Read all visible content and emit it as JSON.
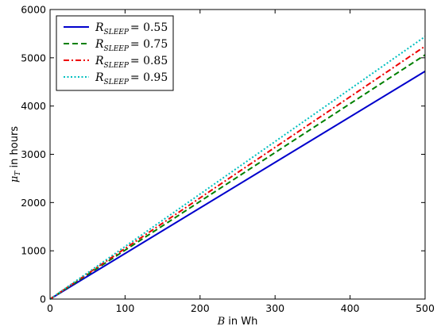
{
  "chart_data": {
    "type": "line",
    "title": "",
    "xlabel": {
      "symbol": "B",
      "rest": " in Wh"
    },
    "ylabel": {
      "symbol": "μ",
      "sub": "T",
      "rest": " in hours"
    },
    "xlim": [
      0,
      500
    ],
    "ylim": [
      0,
      6000
    ],
    "xticks": [
      0,
      100,
      200,
      300,
      400,
      500
    ],
    "yticks": [
      0,
      1000,
      2000,
      3000,
      4000,
      5000,
      6000
    ],
    "grid": false,
    "legend_position": "top-left",
    "series": [
      {
        "name": "R_SLEEP = 0.55",
        "sym": "R",
        "sub": "SLEEP",
        "val": "= 0.55",
        "color": "#0000cc",
        "dash": "solid",
        "x": [
          0,
          500
        ],
        "y": [
          0,
          4720
        ]
      },
      {
        "name": "R_SLEEP = 0.75",
        "sym": "R",
        "sub": "SLEEP",
        "val": "= 0.75",
        "color": "#008000",
        "dash": "dashed",
        "x": [
          0,
          500
        ],
        "y": [
          0,
          5060
        ]
      },
      {
        "name": "R_SLEEP = 0.85",
        "sym": "R",
        "sub": "SLEEP",
        "val": "= 0.85",
        "color": "#ee0000",
        "dash": "dashdot",
        "x": [
          0,
          500
        ],
        "y": [
          0,
          5240
        ]
      },
      {
        "name": "R_SLEEP = 0.95",
        "sym": "R",
        "sub": "SLEEP",
        "val": "= 0.95",
        "color": "#00bfbf",
        "dash": "dotted",
        "x": [
          0,
          500
        ],
        "y": [
          0,
          5440
        ]
      }
    ]
  }
}
